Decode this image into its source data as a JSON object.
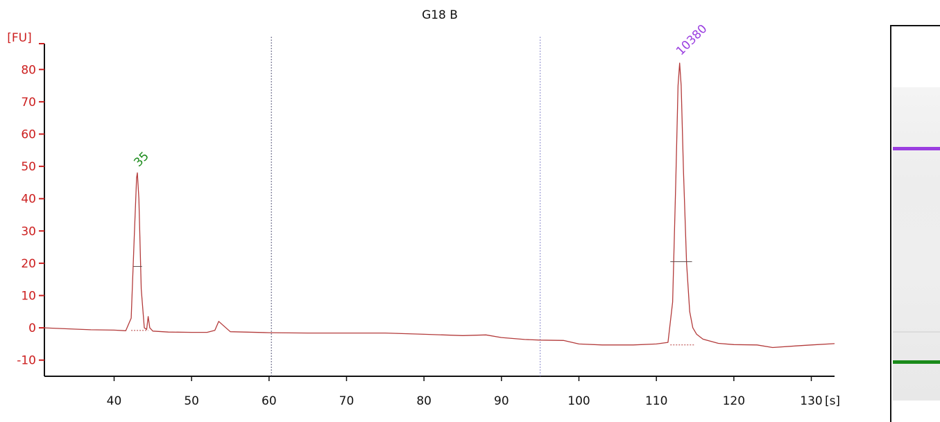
{
  "chart_data": {
    "type": "line",
    "title": "G18 B",
    "xlabel": "[s]",
    "ylabel": "[FU]",
    "xlim": [
      31,
      133
    ],
    "ylim": [
      -15,
      88
    ],
    "xticks": [
      40,
      50,
      60,
      70,
      80,
      90,
      100,
      110,
      120,
      130
    ],
    "yticks": [
      -10,
      0,
      10,
      20,
      30,
      40,
      50,
      60,
      70,
      80
    ],
    "grid": false,
    "colors": {
      "axis": "#cc1f1f",
      "trace": "#b33a3a",
      "marker_lower": "#1a8a1a",
      "marker_upper": "#9a3ee0",
      "divider_left": "#555577",
      "divider_right": "#8888cc"
    },
    "series": [
      {
        "x": [
          31,
          35,
          37,
          40,
          41.5,
          42.2,
          42.6,
          42.9,
          43.0,
          43.2,
          43.5,
          43.9,
          44.2,
          44.4,
          44.6,
          45,
          47,
          50,
          52,
          53.0,
          53.5,
          54.2,
          55,
          60,
          65,
          70,
          75,
          80,
          85,
          88,
          90,
          93,
          95,
          98,
          100,
          103,
          107,
          110,
          111.5,
          112.1,
          112.5,
          112.8,
          113.0,
          113.2,
          113.5,
          113.9,
          114.3,
          114.7,
          115.2,
          116,
          118,
          120,
          123,
          125,
          128,
          130,
          133
        ],
        "y": [
          0,
          -0.4,
          -0.6,
          -0.7,
          -0.9,
          3,
          28,
          46.5,
          48,
          40,
          12,
          0,
          -0.5,
          3.5,
          0,
          -1,
          -1.3,
          -1.4,
          -1.4,
          -0.8,
          2,
          0.5,
          -1.2,
          -1.5,
          -1.6,
          -1.6,
          -1.6,
          -2,
          -2.4,
          -2.2,
          -3,
          -3.6,
          -3.8,
          -3.9,
          -5,
          -5.3,
          -5.3,
          -5.0,
          -4.5,
          8,
          45,
          75,
          82,
          75,
          48,
          20,
          5,
          0,
          -2,
          -3.5,
          -4.8,
          -5.2,
          -5.3,
          -6.1,
          -5.6,
          -5.3,
          -4.9
        ]
      }
    ],
    "dividers_x": [
      60.3,
      95
    ],
    "peak_markers": [
      {
        "label": "35",
        "x": 43.0,
        "y": 48,
        "half_height_y": 19,
        "half_width": [
          42.5,
          43.6
        ],
        "color": "#1a8a1a"
      },
      {
        "label": "10380",
        "x": 113.0,
        "y": 82.5,
        "half_height_y": 20.5,
        "half_width": [
          111.8,
          114.6
        ],
        "color": "#9a3ee0"
      }
    ],
    "baseline_segments": [
      {
        "x": [
          42.2,
          44.4
        ],
        "y": -0.8
      },
      {
        "x": [
          111.8,
          115.0
        ],
        "y": -5.3
      }
    ]
  },
  "gel": {
    "band_upper_color": "#9a3ee0",
    "band_lower_color": "#1a8a1a"
  }
}
